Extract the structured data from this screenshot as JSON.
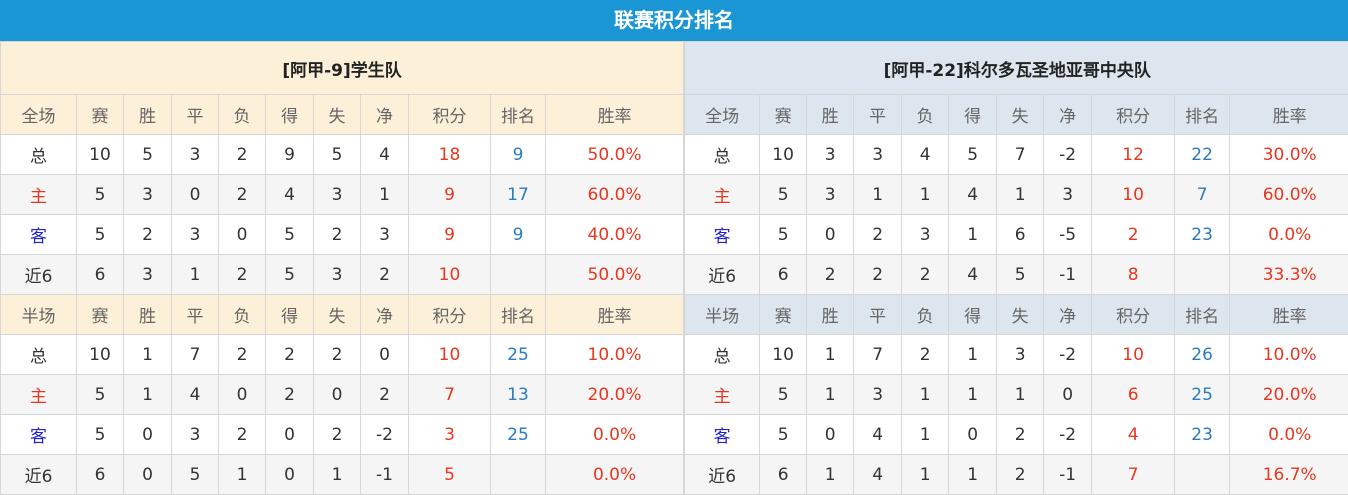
{
  "title": "联赛积分排名",
  "columns_full": [
    "全场",
    "赛",
    "胜",
    "平",
    "负",
    "得",
    "失",
    "净",
    "积分",
    "排名",
    "胜率"
  ],
  "columns_half": [
    "半场",
    "赛",
    "胜",
    "平",
    "负",
    "得",
    "失",
    "净",
    "积分",
    "排名",
    "胜率"
  ],
  "colors": {
    "header_bar": "#1a96d5",
    "points": "#e8361f",
    "rank": "#2a7bbf",
    "away_label": "#2222cc"
  },
  "teams": [
    {
      "name": "[阿甲-9]学生队",
      "full": [
        [
          "总",
          "10",
          "5",
          "3",
          "2",
          "9",
          "5",
          "4",
          "18",
          "9",
          "50.0%"
        ],
        [
          "主",
          "5",
          "3",
          "0",
          "2",
          "4",
          "3",
          "1",
          "9",
          "17",
          "60.0%"
        ],
        [
          "客",
          "5",
          "2",
          "3",
          "0",
          "5",
          "2",
          "3",
          "9",
          "9",
          "40.0%"
        ],
        [
          "近6",
          "6",
          "3",
          "1",
          "2",
          "5",
          "3",
          "2",
          "10",
          "",
          "50.0%"
        ]
      ],
      "half": [
        [
          "总",
          "10",
          "1",
          "7",
          "2",
          "2",
          "2",
          "0",
          "10",
          "25",
          "10.0%"
        ],
        [
          "主",
          "5",
          "1",
          "4",
          "0",
          "2",
          "0",
          "2",
          "7",
          "13",
          "20.0%"
        ],
        [
          "客",
          "5",
          "0",
          "3",
          "2",
          "0",
          "2",
          "-2",
          "3",
          "25",
          "0.0%"
        ],
        [
          "近6",
          "6",
          "0",
          "5",
          "1",
          "0",
          "1",
          "-1",
          "5",
          "",
          "0.0%"
        ]
      ]
    },
    {
      "name": "[阿甲-22]科尔多瓦圣地亚哥中央队",
      "full": [
        [
          "总",
          "10",
          "3",
          "3",
          "4",
          "5",
          "7",
          "-2",
          "12",
          "22",
          "30.0%"
        ],
        [
          "主",
          "5",
          "3",
          "1",
          "1",
          "4",
          "1",
          "3",
          "10",
          "7",
          "60.0%"
        ],
        [
          "客",
          "5",
          "0",
          "2",
          "3",
          "1",
          "6",
          "-5",
          "2",
          "23",
          "0.0%"
        ],
        [
          "近6",
          "6",
          "2",
          "2",
          "2",
          "4",
          "5",
          "-1",
          "8",
          "",
          "33.3%"
        ]
      ],
      "half": [
        [
          "总",
          "10",
          "1",
          "7",
          "2",
          "1",
          "3",
          "-2",
          "10",
          "26",
          "10.0%"
        ],
        [
          "主",
          "5",
          "1",
          "3",
          "1",
          "1",
          "1",
          "0",
          "6",
          "25",
          "20.0%"
        ],
        [
          "客",
          "5",
          "0",
          "4",
          "1",
          "0",
          "2",
          "-2",
          "4",
          "23",
          "0.0%"
        ],
        [
          "近6",
          "6",
          "1",
          "4",
          "1",
          "1",
          "2",
          "-1",
          "7",
          "",
          "16.7%"
        ]
      ]
    }
  ]
}
